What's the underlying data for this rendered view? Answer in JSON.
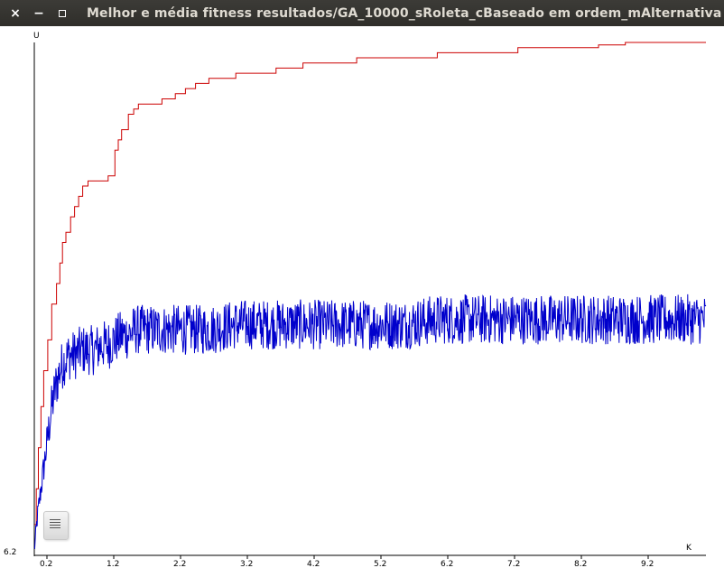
{
  "window": {
    "title": "Melhor e média fitness resultados/GA_10000_sRoleta_cBaseado em ordem_mAlternativa",
    "close_glyph": "×",
    "minimize_glyph": "−"
  },
  "chart_data": {
    "type": "line",
    "title": "",
    "xlabel": "K",
    "ylabel": "U",
    "x_ticks": [
      "0.2",
      "1.2",
      "2.2",
      "3.2",
      "4.2",
      "5.2",
      "6.2",
      "7.2",
      "8.2",
      "9.2"
    ],
    "y_ticks": [
      "6.2"
    ],
    "xlim": [
      0,
      10000
    ],
    "ylim": [
      0,
      1
    ],
    "grid": false,
    "series": [
      {
        "color": "#cc0000",
        "note_values_normalized": true,
        "x": [
          0,
          30,
          60,
          100,
          140,
          200,
          260,
          330,
          380,
          420,
          470,
          540,
          600,
          660,
          720,
          800,
          900,
          1000,
          1100,
          1200,
          1250,
          1300,
          1400,
          1480,
          1550,
          1650,
          1750,
          1900,
          2100,
          2250,
          2400,
          2600,
          2800,
          3000,
          3200,
          3400,
          3600,
          3800,
          4000,
          4200,
          4500,
          4800,
          5200,
          5600,
          6000,
          6400,
          6800,
          7200,
          7600,
          8000,
          8400,
          8800,
          9200,
          9600,
          10000
        ],
        "y": [
          0.06,
          0.13,
          0.21,
          0.29,
          0.36,
          0.42,
          0.49,
          0.53,
          0.57,
          0.61,
          0.63,
          0.66,
          0.68,
          0.7,
          0.72,
          0.73,
          0.73,
          0.73,
          0.74,
          0.79,
          0.81,
          0.83,
          0.86,
          0.87,
          0.88,
          0.88,
          0.88,
          0.89,
          0.9,
          0.91,
          0.92,
          0.93,
          0.93,
          0.94,
          0.94,
          0.94,
          0.95,
          0.95,
          0.96,
          0.96,
          0.96,
          0.97,
          0.97,
          0.97,
          0.98,
          0.98,
          0.98,
          0.99,
          0.99,
          0.99,
          0.995,
          1.0,
          1.0,
          1.0,
          1.0
        ]
      },
      {
        "color": "#0000cc",
        "note_values_normalized": true,
        "x": [
          0,
          50,
          100,
          150,
          200,
          260,
          320,
          380,
          450,
          520,
          600,
          700,
          800,
          900,
          1000,
          1100,
          1200,
          1300,
          1400,
          1500,
          1600,
          1800,
          2000,
          2300,
          2600,
          3000,
          3500,
          4000,
          4500,
          5000,
          5500,
          6000,
          6500,
          7000,
          7500,
          8000,
          8500,
          9000,
          9500,
          10000
        ],
        "y": [
          0.01,
          0.08,
          0.13,
          0.18,
          0.23,
          0.29,
          0.33,
          0.36,
          0.38,
          0.39,
          0.39,
          0.4,
          0.4,
          0.4,
          0.41,
          0.41,
          0.42,
          0.43,
          0.43,
          0.44,
          0.44,
          0.44,
          0.44,
          0.44,
          0.44,
          0.45,
          0.45,
          0.45,
          0.45,
          0.45,
          0.45,
          0.46,
          0.46,
          0.46,
          0.46,
          0.46,
          0.46,
          0.46,
          0.46,
          0.46
        ],
        "noise_amplitude": 0.035
      }
    ]
  },
  "icons": {
    "file_icon": "document-icon"
  }
}
